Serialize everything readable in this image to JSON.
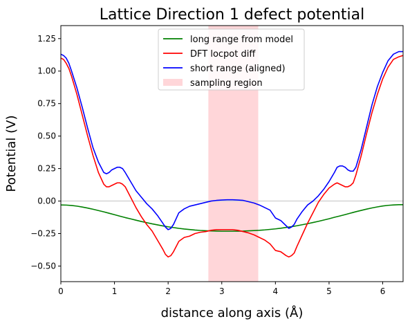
{
  "chart_data": {
    "type": "line",
    "title": "Lattice Direction 1 defect potential",
    "xlabel": "distance along axis (Å)",
    "ylabel": "Potential (V)",
    "xlim": [
      0,
      6.38
    ],
    "ylim": [
      -0.62,
      1.35
    ],
    "x_ticks": [
      0,
      1,
      2,
      3,
      4,
      5,
      6
    ],
    "y_ticks": [
      -0.5,
      -0.25,
      0.0,
      0.25,
      0.5,
      0.75,
      1.0,
      1.25
    ],
    "x_tick_labels": [
      "0",
      "1",
      "2",
      "3",
      "4",
      "5",
      "6"
    ],
    "y_tick_labels": [
      "−0.50",
      "−0.25",
      "0.00",
      "0.25",
      "0.50",
      "0.75",
      "1.00",
      "1.25"
    ],
    "grid": false,
    "legend_position": "top-center",
    "zero_line": {
      "y": 0.0,
      "color": "#d3d3d3"
    },
    "sampling_region": {
      "name": "sampling region",
      "x_start": 2.75,
      "x_end": 3.68,
      "color": "#ffd6d9"
    },
    "series": [
      {
        "name": "long range from model",
        "color": "#008000",
        "x": [
          0,
          0.1,
          0.2,
          0.3,
          0.4,
          0.5,
          0.6,
          0.7,
          0.8,
          0.9,
          1.0,
          1.1,
          1.2,
          1.3,
          1.4,
          1.5,
          1.6,
          1.7,
          1.8,
          1.9,
          2.0,
          2.1,
          2.2,
          2.3,
          2.4,
          2.5,
          2.6,
          2.7,
          2.8,
          2.9,
          3.0,
          3.1,
          3.2,
          3.3,
          3.4,
          3.5,
          3.6,
          3.7,
          3.8,
          3.9,
          4.0,
          4.1,
          4.2,
          4.3,
          4.4,
          4.5,
          4.6,
          4.7,
          4.8,
          4.9,
          5.0,
          5.1,
          5.2,
          5.3,
          5.4,
          5.5,
          5.6,
          5.7,
          5.8,
          5.9,
          6.0,
          6.1,
          6.2,
          6.3,
          6.38
        ],
        "y": [
          -0.03,
          -0.031,
          -0.034,
          -0.039,
          -0.046,
          -0.054,
          -0.063,
          -0.073,
          -0.083,
          -0.094,
          -0.105,
          -0.116,
          -0.127,
          -0.137,
          -0.147,
          -0.157,
          -0.166,
          -0.175,
          -0.183,
          -0.191,
          -0.198,
          -0.204,
          -0.21,
          -0.215,
          -0.219,
          -0.223,
          -0.226,
          -0.228,
          -0.23,
          -0.231,
          -0.232,
          -0.232,
          -0.232,
          -0.232,
          -0.231,
          -0.229,
          -0.227,
          -0.225,
          -0.222,
          -0.218,
          -0.214,
          -0.209,
          -0.203,
          -0.197,
          -0.19,
          -0.182,
          -0.174,
          -0.165,
          -0.156,
          -0.146,
          -0.136,
          -0.125,
          -0.115,
          -0.104,
          -0.093,
          -0.082,
          -0.072,
          -0.062,
          -0.053,
          -0.045,
          -0.038,
          -0.033,
          -0.03,
          -0.028,
          -0.028
        ]
      },
      {
        "name": "DFT locpot diff",
        "color": "#ff0000",
        "x": [
          0,
          0.05,
          0.1,
          0.15,
          0.2,
          0.3,
          0.4,
          0.5,
          0.6,
          0.7,
          0.8,
          0.85,
          0.9,
          0.95,
          1.0,
          1.05,
          1.1,
          1.15,
          1.2,
          1.3,
          1.4,
          1.5,
          1.6,
          1.7,
          1.8,
          1.9,
          1.95,
          2.0,
          2.05,
          2.1,
          2.2,
          2.3,
          2.4,
          2.5,
          2.6,
          2.7,
          2.8,
          2.9,
          3.0,
          3.1,
          3.2,
          3.3,
          3.4,
          3.5,
          3.6,
          3.7,
          3.8,
          3.9,
          4.0,
          4.1,
          4.2,
          4.25,
          4.3,
          4.35,
          4.4,
          4.5,
          4.6,
          4.7,
          4.8,
          4.9,
          5.0,
          5.1,
          5.15,
          5.2,
          5.25,
          5.3,
          5.35,
          5.4,
          5.45,
          5.5,
          5.6,
          5.7,
          5.8,
          5.9,
          6.0,
          6.1,
          6.2,
          6.3,
          6.38
        ],
        "y": [
          1.1,
          1.09,
          1.06,
          1.02,
          0.96,
          0.82,
          0.66,
          0.5,
          0.35,
          0.22,
          0.13,
          0.11,
          0.11,
          0.12,
          0.13,
          0.14,
          0.14,
          0.13,
          0.11,
          0.03,
          -0.05,
          -0.12,
          -0.18,
          -0.23,
          -0.3,
          -0.37,
          -0.41,
          -0.43,
          -0.42,
          -0.39,
          -0.31,
          -0.28,
          -0.27,
          -0.25,
          -0.24,
          -0.235,
          -0.225,
          -0.22,
          -0.22,
          -0.22,
          -0.22,
          -0.225,
          -0.235,
          -0.245,
          -0.26,
          -0.28,
          -0.3,
          -0.33,
          -0.38,
          -0.39,
          -0.42,
          -0.43,
          -0.42,
          -0.4,
          -0.35,
          -0.26,
          -0.17,
          -0.09,
          -0.01,
          0.05,
          0.1,
          0.13,
          0.14,
          0.13,
          0.12,
          0.11,
          0.11,
          0.12,
          0.14,
          0.2,
          0.35,
          0.52,
          0.68,
          0.82,
          0.94,
          1.03,
          1.09,
          1.11,
          1.12
        ]
      },
      {
        "name": "short range (aligned)",
        "color": "#0000ff",
        "x": [
          0,
          0.05,
          0.1,
          0.15,
          0.2,
          0.3,
          0.4,
          0.5,
          0.6,
          0.7,
          0.8,
          0.85,
          0.9,
          0.95,
          1.0,
          1.05,
          1.1,
          1.15,
          1.2,
          1.3,
          1.4,
          1.5,
          1.6,
          1.7,
          1.8,
          1.9,
          1.95,
          2.0,
          2.05,
          2.1,
          2.2,
          2.3,
          2.4,
          2.5,
          2.6,
          2.7,
          2.8,
          2.9,
          3.0,
          3.1,
          3.2,
          3.3,
          3.4,
          3.5,
          3.6,
          3.7,
          3.8,
          3.9,
          4.0,
          4.1,
          4.2,
          4.25,
          4.3,
          4.35,
          4.4,
          4.5,
          4.6,
          4.7,
          4.8,
          4.9,
          5.0,
          5.1,
          5.15,
          5.2,
          5.25,
          5.3,
          5.35,
          5.4,
          5.45,
          5.5,
          5.6,
          5.7,
          5.8,
          5.9,
          6.0,
          6.1,
          6.2,
          6.3,
          6.38
        ],
        "y": [
          1.13,
          1.12,
          1.1,
          1.06,
          1.0,
          0.87,
          0.72,
          0.56,
          0.41,
          0.3,
          0.22,
          0.21,
          0.22,
          0.24,
          0.25,
          0.26,
          0.26,
          0.25,
          0.22,
          0.15,
          0.08,
          0.03,
          -0.02,
          -0.06,
          -0.11,
          -0.17,
          -0.2,
          -0.22,
          -0.21,
          -0.18,
          -0.09,
          -0.06,
          -0.04,
          -0.03,
          -0.02,
          -0.01,
          0.0,
          0.005,
          0.008,
          0.01,
          0.01,
          0.008,
          0.005,
          -0.005,
          -0.015,
          -0.03,
          -0.05,
          -0.07,
          -0.13,
          -0.15,
          -0.19,
          -0.21,
          -0.2,
          -0.18,
          -0.14,
          -0.08,
          -0.03,
          0.0,
          0.04,
          0.09,
          0.15,
          0.22,
          0.26,
          0.27,
          0.27,
          0.26,
          0.24,
          0.23,
          0.23,
          0.26,
          0.4,
          0.57,
          0.74,
          0.88,
          0.99,
          1.08,
          1.13,
          1.15,
          1.15
        ]
      }
    ]
  }
}
